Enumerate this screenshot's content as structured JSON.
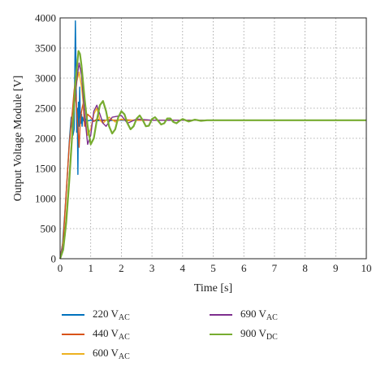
{
  "chart_data": {
    "type": "line",
    "xlabel": "Time [s]",
    "ylabel": "Output Voltage Module [V]",
    "xlim": [
      0,
      10
    ],
    "ylim": [
      0,
      4000
    ],
    "xticks": [
      0,
      1,
      2,
      3,
      4,
      5,
      6,
      7,
      8,
      9,
      10
    ],
    "yticks": [
      0,
      500,
      1000,
      1500,
      2000,
      2500,
      3000,
      3500,
      4000
    ],
    "grid": true,
    "legend_position": "bottom",
    "series": [
      {
        "name_main": "220 V",
        "name_sub": "AC",
        "color": "#0072BD",
        "x": [
          0,
          0.08,
          0.16,
          0.24,
          0.3,
          0.36,
          0.42,
          0.46,
          0.5,
          0.52,
          0.54,
          0.56,
          0.58,
          0.6,
          0.62,
          0.64,
          0.66,
          0.68,
          0.7,
          0.72,
          0.74,
          0.76,
          0.8,
          0.85,
          0.9,
          1.0,
          1.2,
          1.4,
          1.6,
          2.0,
          3.0,
          4.0,
          5.0,
          6.0,
          8.0,
          10.0
        ],
        "y": [
          0,
          250,
          800,
          1400,
          1950,
          2350,
          2050,
          2150,
          3950,
          3200,
          2100,
          2500,
          1400,
          2600,
          2200,
          2850,
          2350,
          2250,
          2400,
          2200,
          2350,
          2300,
          2270,
          2320,
          2290,
          2300,
          2290,
          2305,
          2295,
          2300,
          2300,
          2300,
          2300,
          2300,
          2300,
          2300
        ]
      },
      {
        "name_main": "440 V",
        "name_sub": "AC",
        "color": "#D95319",
        "x": [
          0,
          0.1,
          0.2,
          0.3,
          0.4,
          0.46,
          0.5,
          0.54,
          0.58,
          0.62,
          0.66,
          0.7,
          0.75,
          0.8,
          0.85,
          0.9,
          1.0,
          1.1,
          1.2,
          1.4,
          1.6,
          1.8,
          2.0,
          2.5,
          3.0,
          4.0,
          5.0,
          6.0,
          8.0,
          10.0
        ],
        "y": [
          0,
          300,
          1100,
          1900,
          2450,
          2800,
          2950,
          2450,
          2200,
          1850,
          2300,
          2450,
          2580,
          2200,
          2250,
          2400,
          2350,
          2280,
          2320,
          2290,
          2310,
          2300,
          2310,
          2300,
          2300,
          2300,
          2300,
          2300,
          2300,
          2300
        ]
      },
      {
        "name_main": "600 V",
        "name_sub": "AC",
        "color": "#EDB120",
        "x": [
          0,
          0.15,
          0.3,
          0.45,
          0.55,
          0.62,
          0.7,
          0.8,
          0.9,
          1.0,
          1.1,
          1.2,
          1.3,
          1.4,
          1.6,
          1.8,
          2.0,
          2.2,
          2.5,
          3.0,
          3.5,
          4.0,
          5.0,
          6.0,
          8.0,
          10.0
        ],
        "y": [
          0,
          400,
          1400,
          2500,
          2950,
          3100,
          2850,
          2350,
          2050,
          2150,
          2400,
          2500,
          2300,
          2250,
          2350,
          2270,
          2320,
          2290,
          2310,
          2300,
          2300,
          2300,
          2300,
          2300,
          2300,
          2300
        ]
      },
      {
        "name_main": "690 V",
        "name_sub": "AC",
        "color": "#7E2F8E",
        "x": [
          0,
          0.15,
          0.3,
          0.45,
          0.55,
          0.62,
          0.7,
          0.8,
          0.9,
          1.0,
          1.1,
          1.2,
          1.3,
          1.4,
          1.5,
          1.7,
          2.0,
          2.2,
          2.5,
          3.0,
          3.5,
          4.0,
          5.0,
          6.0,
          8.0,
          10.0
        ],
        "y": [
          0,
          350,
          1300,
          2450,
          3000,
          3250,
          3050,
          2400,
          1900,
          2050,
          2450,
          2550,
          2400,
          2250,
          2200,
          2350,
          2380,
          2250,
          2320,
          2300,
          2300,
          2300,
          2300,
          2300,
          2300,
          2300
        ]
      },
      {
        "name_main": "900 V",
        "name_sub": "DC",
        "color": "#77AC30",
        "x": [
          0,
          0.1,
          0.2,
          0.3,
          0.4,
          0.5,
          0.6,
          0.65,
          0.7,
          0.8,
          0.9,
          1.0,
          1.1,
          1.2,
          1.3,
          1.4,
          1.5,
          1.6,
          1.7,
          1.8,
          1.9,
          2.0,
          2.1,
          2.2,
          2.3,
          2.4,
          2.5,
          2.6,
          2.7,
          2.8,
          2.9,
          3.0,
          3.1,
          3.2,
          3.3,
          3.4,
          3.5,
          3.6,
          3.7,
          3.8,
          3.9,
          4.0,
          4.2,
          4.4,
          4.6,
          4.8,
          5.0,
          5.5,
          6.0,
          7.0,
          8.0,
          9.0,
          10.0
        ],
        "y": [
          0,
          150,
          600,
          1300,
          2100,
          2900,
          3450,
          3400,
          3200,
          2650,
          2200,
          1900,
          2000,
          2300,
          2550,
          2620,
          2450,
          2200,
          2080,
          2150,
          2350,
          2450,
          2400,
          2250,
          2150,
          2200,
          2330,
          2380,
          2300,
          2200,
          2210,
          2320,
          2350,
          2290,
          2230,
          2250,
          2330,
          2330,
          2270,
          2250,
          2290,
          2320,
          2280,
          2310,
          2290,
          2300,
          2300,
          2300,
          2300,
          2300,
          2300,
          2300,
          2300
        ]
      }
    ]
  }
}
